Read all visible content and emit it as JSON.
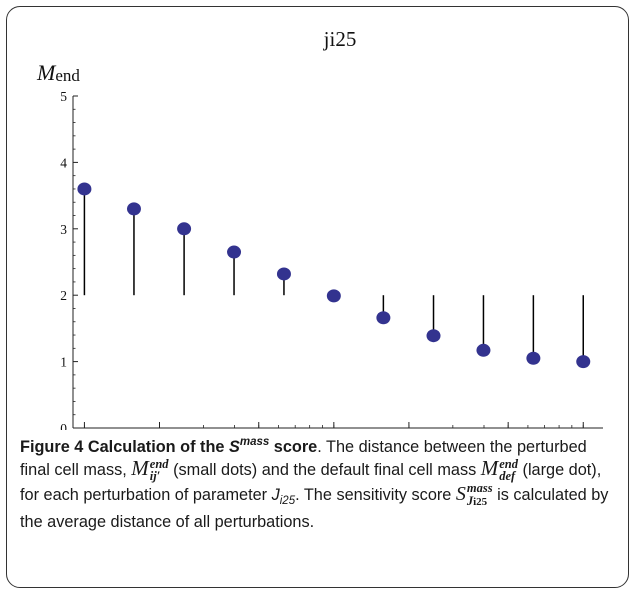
{
  "chart_data": {
    "type": "scatter",
    "title": "ji25",
    "ylabel": "M",
    "ylabel_sub": "end",
    "xscale": "log",
    "xlim": [
      0.0009,
      0.12
    ],
    "ylim": [
      0,
      5
    ],
    "x_ticks": [
      "0.001",
      "0.002",
      "0.005",
      "0.010",
      "0.020",
      "0.050",
      "0.100"
    ],
    "y_ticks": [
      "0",
      "1",
      "2",
      "3",
      "4",
      "5"
    ],
    "default_value": 2.0,
    "x": [
      0.001,
      0.00158,
      0.00251,
      0.00398,
      0.00631,
      0.01,
      0.0158,
      0.0251,
      0.0398,
      0.0631,
      0.1
    ],
    "values": [
      3.6,
      3.3,
      3.0,
      2.65,
      2.32,
      1.99,
      1.66,
      1.39,
      1.17,
      1.05,
      1.0
    ],
    "grid": false,
    "dot_color": "#33338f",
    "stem_color": "#000000"
  },
  "caption": {
    "label_prefix": "Figure 4 Calculation of the ",
    "label_s": "S",
    "label_sup": "mass",
    "label_suffix": " score",
    "t1": ". The distance between the perturbed final cell mass, ",
    "m1": "M",
    "m1_sup": "end",
    "m1_sub": "ij′",
    "t2": " (small dots) and the default final cell mass ",
    "m2": "M",
    "m2_sup": "end",
    "m2_sub": "def",
    "t3": " (large dot), for each perturbation of parameter ",
    "j_main": "J",
    "j_sub": "i25",
    "t4": ". The sensitivity score ",
    "s_main": "S",
    "s_sup": "mass",
    "s_sub_j": "J",
    "s_sub_j_sub": "i25",
    "t5": " is calculated by the average distance of all perturbations."
  }
}
